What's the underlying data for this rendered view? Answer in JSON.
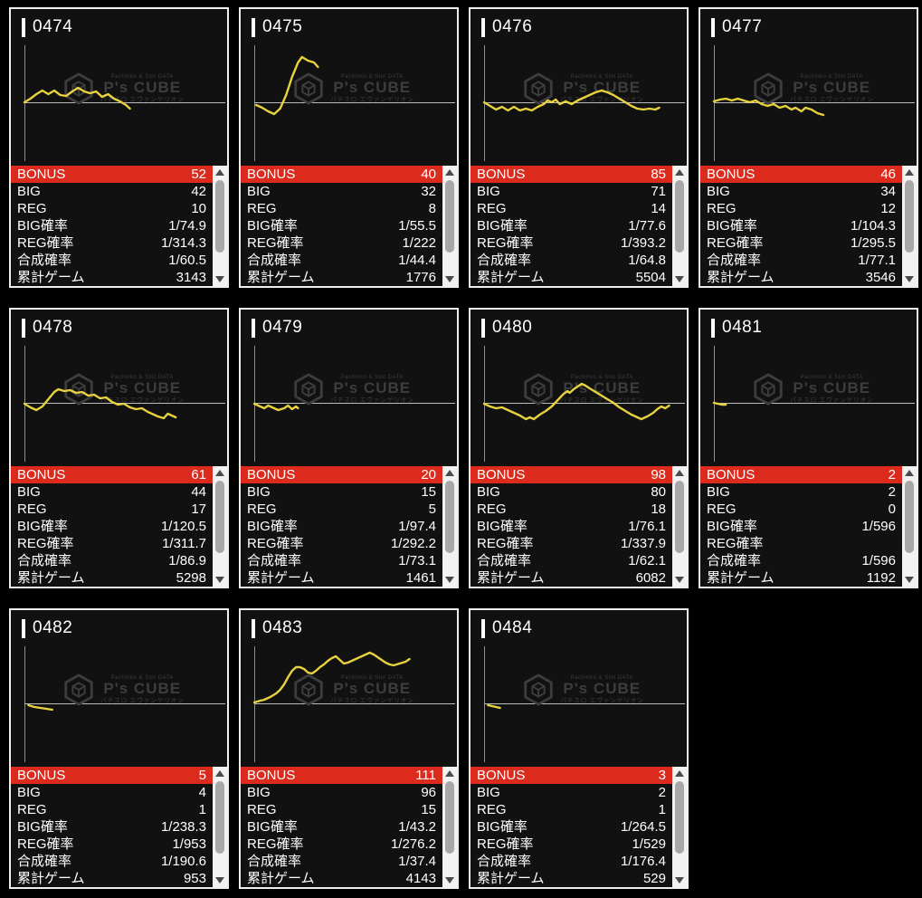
{
  "colors": {
    "accent_red": "#dc2a1c",
    "line_yellow": "#e8d23f",
    "axis_gray": "#bdbdbd",
    "panel_border": "#efefef",
    "watermark_gray": "#3d3d3d"
  },
  "watermark": {
    "top_text": "Pachinko & Slot DATA",
    "brand": "P's CUBE",
    "sub_text": "パチスロ エヴァンゲリオン"
  },
  "row_order": [
    "bonus",
    "big",
    "reg",
    "big_rate",
    "reg_rate",
    "gosei_rate",
    "total_games"
  ],
  "row_labels": {
    "bonus": "BONUS",
    "big": "BIG",
    "reg": "REG",
    "big_rate": "BIG確率",
    "reg_rate": "REG確率",
    "gosei_rate": "合成確率",
    "total_games": "累計ゲーム"
  },
  "panels": [
    {
      "id": "0474",
      "values": {
        "bonus": "52",
        "big": "42",
        "reg": "10",
        "big_rate": "1/74.9",
        "reg_rate": "1/314.3",
        "gosei_rate": "1/60.5",
        "total_games": "3143"
      },
      "chart": [
        [
          0,
          0
        ],
        [
          0.03,
          4
        ],
        [
          0.06,
          9
        ],
        [
          0.09,
          13
        ],
        [
          0.12,
          9
        ],
        [
          0.15,
          13
        ],
        [
          0.18,
          8
        ],
        [
          0.21,
          7
        ],
        [
          0.24,
          12
        ],
        [
          0.27,
          16
        ],
        [
          0.3,
          12
        ],
        [
          0.33,
          10
        ],
        [
          0.36,
          12
        ],
        [
          0.39,
          6
        ],
        [
          0.42,
          9
        ],
        [
          0.45,
          4
        ],
        [
          0.48,
          1
        ],
        [
          0.51,
          -3
        ],
        [
          0.53,
          -7
        ]
      ]
    },
    {
      "id": "0475",
      "values": {
        "bonus": "40",
        "big": "32",
        "reg": "8",
        "big_rate": "1/55.5",
        "reg_rate": "1/222",
        "gosei_rate": "1/44.4",
        "total_games": "1776"
      },
      "chart": [
        [
          0.01,
          -3
        ],
        [
          0.04,
          -6
        ],
        [
          0.07,
          -10
        ],
        [
          0.1,
          -13
        ],
        [
          0.13,
          -7
        ],
        [
          0.16,
          8
        ],
        [
          0.19,
          28
        ],
        [
          0.22,
          44
        ],
        [
          0.24,
          50
        ],
        [
          0.27,
          46
        ],
        [
          0.3,
          44
        ],
        [
          0.32,
          39
        ]
      ]
    },
    {
      "id": "0476",
      "values": {
        "bonus": "85",
        "big": "71",
        "reg": "14",
        "big_rate": "1/77.6",
        "reg_rate": "1/393.2",
        "gosei_rate": "1/64.8",
        "total_games": "5504"
      },
      "chart": [
        [
          0,
          0
        ],
        [
          0.03,
          -4
        ],
        [
          0.06,
          -8
        ],
        [
          0.09,
          -5
        ],
        [
          0.12,
          -9
        ],
        [
          0.15,
          -5
        ],
        [
          0.18,
          -9
        ],
        [
          0.21,
          -7
        ],
        [
          0.24,
          -9
        ],
        [
          0.27,
          -5
        ],
        [
          0.3,
          -2
        ],
        [
          0.32,
          2
        ],
        [
          0.34,
          0
        ],
        [
          0.36,
          3
        ],
        [
          0.38,
          -2
        ],
        [
          0.41,
          1
        ],
        [
          0.44,
          -2
        ],
        [
          0.47,
          2
        ],
        [
          0.5,
          5
        ],
        [
          0.53,
          8
        ],
        [
          0.56,
          11
        ],
        [
          0.59,
          13
        ],
        [
          0.62,
          11
        ],
        [
          0.65,
          8
        ],
        [
          0.68,
          4
        ],
        [
          0.71,
          0
        ],
        [
          0.74,
          -4
        ],
        [
          0.77,
          -7
        ],
        [
          0.8,
          -8
        ],
        [
          0.83,
          -7
        ],
        [
          0.86,
          -8
        ],
        [
          0.88,
          -6
        ]
      ]
    },
    {
      "id": "0477",
      "values": {
        "bonus": "46",
        "big": "34",
        "reg": "12",
        "big_rate": "1/104.3",
        "reg_rate": "1/295.5",
        "gosei_rate": "1/77.1",
        "total_games": "3546"
      },
      "chart": [
        [
          0,
          1
        ],
        [
          0.03,
          3
        ],
        [
          0.06,
          4
        ],
        [
          0.09,
          2
        ],
        [
          0.12,
          4
        ],
        [
          0.15,
          2
        ],
        [
          0.18,
          0
        ],
        [
          0.21,
          2
        ],
        [
          0.24,
          -2
        ],
        [
          0.27,
          -4
        ],
        [
          0.3,
          -2
        ],
        [
          0.33,
          -6
        ],
        [
          0.36,
          -4
        ],
        [
          0.39,
          -8
        ],
        [
          0.41,
          -6
        ],
        [
          0.44,
          -10
        ],
        [
          0.46,
          -6
        ],
        [
          0.49,
          -8
        ],
        [
          0.52,
          -12
        ],
        [
          0.55,
          -14
        ]
      ]
    },
    {
      "id": "0478",
      "values": {
        "bonus": "61",
        "big": "44",
        "reg": "17",
        "big_rate": "1/120.5",
        "reg_rate": "1/311.7",
        "gosei_rate": "1/86.9",
        "total_games": "5298"
      },
      "chart": [
        [
          0,
          -1
        ],
        [
          0.03,
          -5
        ],
        [
          0.06,
          -8
        ],
        [
          0.09,
          -4
        ],
        [
          0.12,
          4
        ],
        [
          0.15,
          12
        ],
        [
          0.17,
          15
        ],
        [
          0.2,
          13
        ],
        [
          0.23,
          14
        ],
        [
          0.26,
          11
        ],
        [
          0.29,
          12
        ],
        [
          0.32,
          8
        ],
        [
          0.35,
          9
        ],
        [
          0.38,
          5
        ],
        [
          0.41,
          6
        ],
        [
          0.44,
          1
        ],
        [
          0.47,
          -2
        ],
        [
          0.5,
          -1
        ],
        [
          0.53,
          -5
        ],
        [
          0.56,
          -7
        ],
        [
          0.59,
          -6
        ],
        [
          0.62,
          -10
        ],
        [
          0.64,
          -12
        ],
        [
          0.67,
          -15
        ],
        [
          0.7,
          -17
        ],
        [
          0.72,
          -12
        ],
        [
          0.74,
          -14
        ],
        [
          0.76,
          -16
        ]
      ]
    },
    {
      "id": "0479",
      "values": {
        "bonus": "20",
        "big": "15",
        "reg": "5",
        "big_rate": "1/97.4",
        "reg_rate": "1/292.2",
        "gosei_rate": "1/73.1",
        "total_games": "1461"
      },
      "chart": [
        [
          0,
          -1
        ],
        [
          0.03,
          -4
        ],
        [
          0.05,
          -6
        ],
        [
          0.07,
          -3
        ],
        [
          0.09,
          -5
        ],
        [
          0.12,
          -8
        ],
        [
          0.15,
          -6
        ],
        [
          0.17,
          -3
        ],
        [
          0.19,
          -7
        ],
        [
          0.21,
          -4
        ],
        [
          0.22,
          -6
        ]
      ]
    },
    {
      "id": "0480",
      "values": {
        "bonus": "98",
        "big": "80",
        "reg": "18",
        "big_rate": "1/76.1",
        "reg_rate": "1/337.9",
        "gosei_rate": "1/62.1",
        "total_games": "6082"
      },
      "chart": [
        [
          0,
          -1
        ],
        [
          0.03,
          -4
        ],
        [
          0.06,
          -6
        ],
        [
          0.09,
          -5
        ],
        [
          0.12,
          -8
        ],
        [
          0.15,
          -11
        ],
        [
          0.18,
          -14
        ],
        [
          0.21,
          -18
        ],
        [
          0.23,
          -16
        ],
        [
          0.25,
          -18
        ],
        [
          0.28,
          -13
        ],
        [
          0.31,
          -9
        ],
        [
          0.34,
          -4
        ],
        [
          0.37,
          3
        ],
        [
          0.4,
          10
        ],
        [
          0.42,
          13
        ],
        [
          0.43,
          11
        ],
        [
          0.45,
          15
        ],
        [
          0.47,
          18
        ],
        [
          0.49,
          21
        ],
        [
          0.51,
          19
        ],
        [
          0.53,
          16
        ],
        [
          0.56,
          12
        ],
        [
          0.59,
          8
        ],
        [
          0.62,
          4
        ],
        [
          0.65,
          0
        ],
        [
          0.68,
          -5
        ],
        [
          0.71,
          -9
        ],
        [
          0.74,
          -13
        ],
        [
          0.77,
          -16
        ],
        [
          0.79,
          -18
        ],
        [
          0.82,
          -15
        ],
        [
          0.85,
          -11
        ],
        [
          0.87,
          -7
        ],
        [
          0.89,
          -4
        ],
        [
          0.91,
          -6
        ],
        [
          0.93,
          -3
        ]
      ]
    },
    {
      "id": "0481",
      "values": {
        "bonus": "2",
        "big": "2",
        "reg": "0",
        "big_rate": "1/596",
        "reg_rate": "",
        "gosei_rate": "1/596",
        "total_games": "1192"
      },
      "chart": [
        [
          0,
          0
        ],
        [
          0.02,
          -1
        ],
        [
          0.04,
          -2
        ],
        [
          0.06,
          -2
        ]
      ]
    },
    {
      "id": "0482",
      "values": {
        "bonus": "5",
        "big": "4",
        "reg": "1",
        "big_rate": "1/238.3",
        "reg_rate": "1/953",
        "gosei_rate": "1/190.6",
        "total_games": "953"
      },
      "chart": [
        [
          0.02,
          -2
        ],
        [
          0.05,
          -4
        ],
        [
          0.08,
          -5
        ],
        [
          0.11,
          -6
        ],
        [
          0.14,
          -7
        ]
      ]
    },
    {
      "id": "0483",
      "values": {
        "bonus": "111",
        "big": "96",
        "reg": "15",
        "big_rate": "1/43.2",
        "reg_rate": "1/276.2",
        "gosei_rate": "1/37.4",
        "total_games": "4143"
      },
      "chart": [
        [
          0,
          1
        ],
        [
          0.03,
          3
        ],
        [
          0.05,
          4
        ],
        [
          0.08,
          7
        ],
        [
          0.11,
          11
        ],
        [
          0.13,
          15
        ],
        [
          0.15,
          21
        ],
        [
          0.17,
          29
        ],
        [
          0.19,
          36
        ],
        [
          0.21,
          40
        ],
        [
          0.23,
          40
        ],
        [
          0.25,
          38
        ],
        [
          0.27,
          34
        ],
        [
          0.29,
          33
        ],
        [
          0.31,
          36
        ],
        [
          0.33,
          40
        ],
        [
          0.35,
          43
        ],
        [
          0.37,
          47
        ],
        [
          0.39,
          50
        ],
        [
          0.41,
          52
        ],
        [
          0.43,
          48
        ],
        [
          0.45,
          44
        ],
        [
          0.47,
          45
        ],
        [
          0.5,
          48
        ],
        [
          0.53,
          51
        ],
        [
          0.56,
          54
        ],
        [
          0.58,
          56
        ],
        [
          0.6,
          54
        ],
        [
          0.62,
          51
        ],
        [
          0.64,
          48
        ],
        [
          0.66,
          45
        ],
        [
          0.68,
          43
        ],
        [
          0.7,
          42
        ],
        [
          0.73,
          44
        ],
        [
          0.76,
          46
        ],
        [
          0.78,
          49
        ]
      ]
    },
    {
      "id": "0484",
      "values": {
        "bonus": "3",
        "big": "2",
        "reg": "1",
        "big_rate": "1/264.5",
        "reg_rate": "1/529",
        "gosei_rate": "1/176.4",
        "total_games": "529"
      },
      "chart": [
        [
          0.02,
          -2
        ],
        [
          0.04,
          -3
        ],
        [
          0.06,
          -4
        ],
        [
          0.08,
          -5
        ]
      ]
    }
  ]
}
